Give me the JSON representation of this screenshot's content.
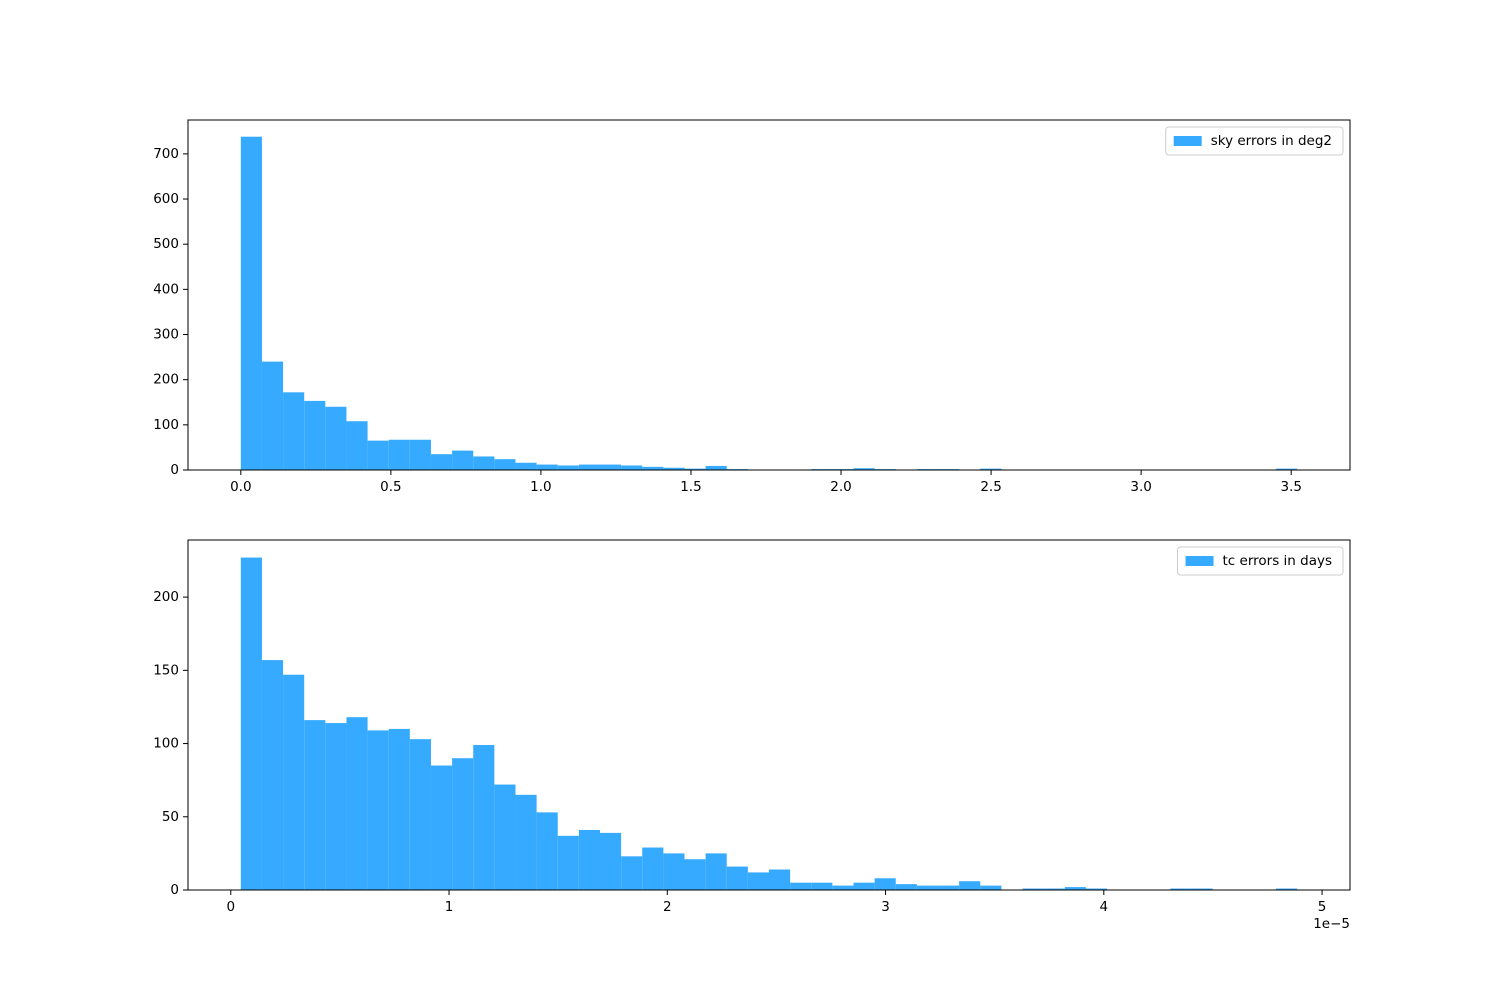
{
  "chart_data": [
    {
      "type": "histogram",
      "bins": [
        0,
        0.0704,
        0.1408,
        0.2112,
        0.2816,
        0.352,
        0.4224,
        0.4928,
        0.5632,
        0.6336,
        0.704,
        0.7744,
        0.8448,
        0.9152,
        0.9856,
        1.056,
        1.1264,
        1.1968,
        1.2672,
        1.3376,
        1.408,
        1.4784,
        1.5488,
        1.6192,
        1.6896,
        1.76,
        1.8304,
        1.9008,
        1.9712,
        2.0416,
        2.112,
        2.1824,
        2.2528,
        2.3232,
        2.3936,
        2.464,
        2.5344,
        2.6048,
        2.6752,
        2.7456,
        2.816,
        2.8864,
        2.9568,
        3.0272,
        3.0976,
        3.168,
        3.2384,
        3.3088,
        3.3792,
        3.4496,
        3.52
      ],
      "series": [
        {
          "name": "sky errors in deg2",
          "color": "#36aaff",
          "values": [
            738,
            240,
            172,
            153,
            140,
            108,
            65,
            67,
            67,
            35,
            43,
            30,
            24,
            16,
            12,
            10,
            12,
            12,
            10,
            7,
            5,
            3,
            9,
            2,
            0,
            0,
            0,
            2,
            2,
            4,
            2,
            0,
            2,
            2,
            0,
            3,
            0,
            0,
            0,
            0,
            0,
            0,
            0,
            0,
            0,
            0,
            0,
            0,
            0,
            3
          ]
        }
      ],
      "xlim": [
        -0.176,
        3.696
      ],
      "xticks": [
        {
          "value": 0,
          "label": "0.0"
        },
        0.5,
        {
          "value": 1,
          "label": "1.0"
        },
        1.5,
        {
          "value": 2,
          "label": "2.0"
        },
        2.5,
        {
          "value": 3,
          "label": "3.0"
        },
        3.5
      ],
      "ylim": [
        0,
        775
      ],
      "yticks": [
        0,
        100,
        200,
        300,
        400,
        500,
        600,
        700
      ],
      "legend": "upper right"
    },
    {
      "type": "histogram",
      "bins": [
        0.046,
        0.1428,
        0.2396,
        0.3364,
        0.4332,
        0.53,
        0.6268,
        0.7236,
        0.8204,
        0.9172,
        1.014,
        1.1108,
        1.2076,
        1.3044,
        1.4012,
        1.498,
        1.5948,
        1.6916,
        1.7884,
        1.8852,
        1.982,
        2.0788,
        2.1756,
        2.2724,
        2.3692,
        2.466,
        2.5628,
        2.6596,
        2.7564,
        2.8532,
        2.95,
        3.0468,
        3.1436,
        3.2404,
        3.3372,
        3.434,
        3.5308,
        3.6276,
        3.7244,
        3.8212,
        3.918,
        4.0148,
        4.1116,
        4.2084,
        4.3052,
        4.402,
        4.4988,
        4.5956,
        4.6924,
        4.7892,
        4.886
      ],
      "series": [
        {
          "name": "tc errors in days",
          "color": "#36aaff",
          "values": [
            227,
            157,
            147,
            116,
            114,
            118,
            109,
            110,
            103,
            85,
            90,
            99,
            72,
            65,
            53,
            37,
            41,
            39,
            23,
            29,
            25,
            21,
            25,
            16,
            12,
            14,
            5,
            5,
            3,
            5,
            8,
            4,
            3,
            3,
            6,
            3,
            0,
            1,
            1,
            2,
            1,
            0,
            0,
            0,
            1,
            1,
            0,
            0,
            0,
            1
          ]
        }
      ],
      "xlim": [
        -0.196,
        5.128
      ],
      "xticks": [
        0,
        1,
        2,
        3,
        4,
        5
      ],
      "x_offset_label": "1e−5",
      "ylim": [
        0,
        239
      ],
      "yticks": [
        0,
        50,
        100,
        150,
        200
      ],
      "legend": "upper right"
    }
  ]
}
